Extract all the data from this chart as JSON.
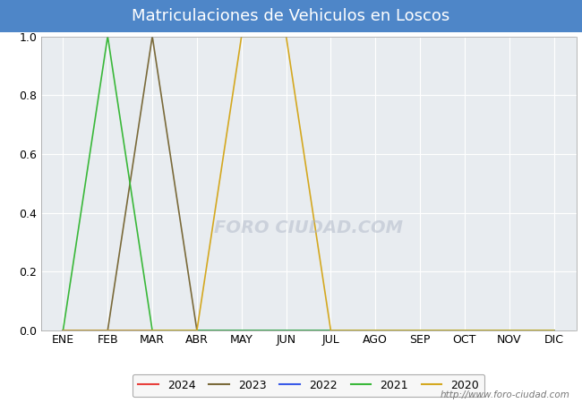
{
  "title": "Matriculaciones de Vehiculos en Loscos",
  "title_bg_color": "#4e86c8",
  "title_text_color": "#ffffff",
  "plot_bg_color": "#e8ecf0",
  "fig_bg_color": "#ffffff",
  "months": [
    "ENE",
    "FEB",
    "MAR",
    "ABR",
    "MAY",
    "JUN",
    "JUL",
    "AGO",
    "SEP",
    "OCT",
    "NOV",
    "DIC"
  ],
  "ylim": [
    0.0,
    1.0
  ],
  "yticks": [
    0.0,
    0.2,
    0.4,
    0.6,
    0.8,
    1.0
  ],
  "plot_data": {
    "2024": [
      0,
      0,
      0,
      0,
      0,
      0,
      0,
      0,
      0,
      0,
      0,
      0
    ],
    "2023": [
      0,
      0,
      1,
      0,
      0,
      0,
      0,
      0,
      0,
      0,
      0,
      0
    ],
    "2022": [
      0,
      0,
      0,
      0,
      0,
      0,
      0,
      0,
      0,
      0,
      0,
      0
    ],
    "2021": [
      0,
      1,
      0,
      0,
      0,
      0,
      0,
      0,
      0,
      0,
      0,
      0
    ],
    "2020": [
      0,
      0,
      0,
      0,
      1,
      1,
      0,
      0,
      0,
      0,
      0,
      0
    ]
  },
  "colors": {
    "2024": "#e8403c",
    "2023": "#7a6a3a",
    "2022": "#3a5ae8",
    "2021": "#3ab83a",
    "2020": "#d4a820"
  },
  "legend_order": [
    "2024",
    "2023",
    "2022",
    "2021",
    "2020"
  ],
  "footer_url": "http://www.foro-ciudad.com",
  "grid_color": "#ffffff",
  "line_width": 1.2,
  "title_fontsize": 13,
  "tick_fontsize": 9,
  "legend_fontsize": 9
}
